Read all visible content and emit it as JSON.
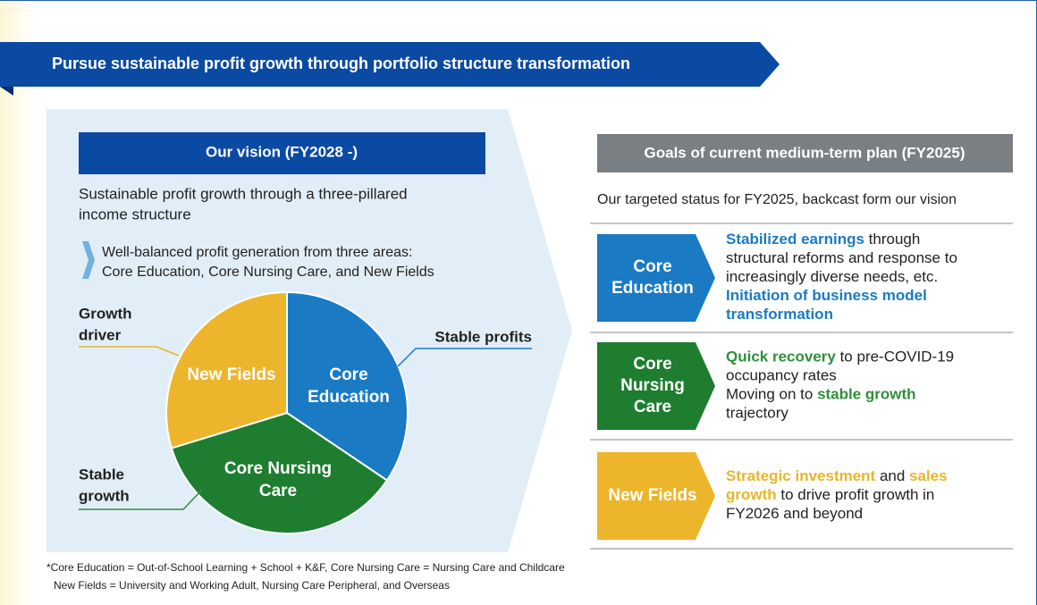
{
  "banner": "Pursue sustainable profit growth through portfolio structure transformation",
  "vision": {
    "header": "Our vision (FY2028 -)",
    "text": [
      "Sustainable profit growth through a three-pillared",
      "income structure"
    ],
    "bullet": [
      "Well-balanced profit generation from three areas:",
      "Core Education, Core Nursing Care, and New Fields"
    ],
    "pie": {
      "slices": [
        [
          "Core",
          "Education"
        ],
        [
          "Core Nursing",
          "Care"
        ],
        [
          "New Fields"
        ]
      ],
      "callouts": [
        [
          "Stable profits"
        ],
        [
          "Stable",
          "growth"
        ],
        [
          "Growth",
          "driver"
        ]
      ]
    }
  },
  "goals": {
    "header": "Goals of current medium-term plan (FY2025)",
    "subtitle": "Our targeted status for FY2025, backcast form our vision",
    "items": [
      {
        "label": [
          "Core",
          "Education"
        ],
        "lines": [
          [
            "Stabilized earnings",
            " through"
          ],
          [
            "structural reforms and response to"
          ],
          [
            "increasingly diverse needs, etc."
          ],
          [
            "Initiation of business model"
          ],
          [
            "transformation"
          ]
        ]
      },
      {
        "label": [
          "Core",
          "Nursing",
          "Care"
        ],
        "lines": [
          [
            "Quick recovery",
            " to pre-COVID-19"
          ],
          [
            "occupancy rates"
          ],
          [
            "Moving on to ",
            "stable growth"
          ],
          [
            "trajectory"
          ]
        ]
      },
      {
        "label": [
          "New Fields"
        ],
        "lines": [
          [
            "Strategic investment",
            " and ",
            "sales"
          ],
          [
            "growth",
            " to drive profit growth in"
          ],
          [
            "FY2026 and beyond"
          ]
        ]
      }
    ]
  },
  "footnote": [
    "*Core Education = Out-of-School Learning + School + K&F, Core Nursing Care = Nursing Care and Childcare",
    "New Fields = University and Working Adult, Nursing Care Peripheral, and Overseas"
  ]
}
